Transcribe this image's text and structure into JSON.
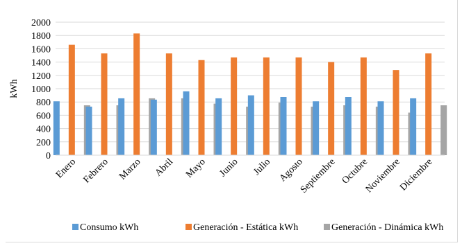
{
  "chart_data": {
    "type": "bar",
    "ylabel": "kWh",
    "ylim": [
      0,
      2000
    ],
    "yticks": [
      0,
      200,
      400,
      600,
      800,
      1000,
      1200,
      1400,
      1600,
      1800,
      2000
    ],
    "grid": true,
    "legend_position": "bottom",
    "categories": [
      "Enero",
      "Febrero",
      "Marzo",
      "Abril",
      "Mayo",
      "Junio",
      "Julio",
      "Agosto",
      "Septiembre",
      "Octubre",
      "Noviembre",
      "Diciembre"
    ],
    "series": [
      {
        "name": "Consumo kWh",
        "color": "#5b9bd5",
        "values": [
          810,
          730,
          855,
          835,
          960,
          855,
          900,
          875,
          810,
          875,
          810,
          855
        ]
      },
      {
        "name": "Generación - Estática kWh",
        "color": "#ed7d31",
        "values": [
          1660,
          1530,
          1830,
          1530,
          1430,
          1470,
          1470,
          1470,
          1400,
          1470,
          1280,
          1530
        ]
      },
      {
        "name": "Generación - Dinámica kWh",
        "color": "#a5a5a5",
        "values": [
          750,
          750,
          855,
          855,
          775,
          730,
          790,
          730,
          750,
          730,
          640,
          750
        ]
      }
    ]
  }
}
